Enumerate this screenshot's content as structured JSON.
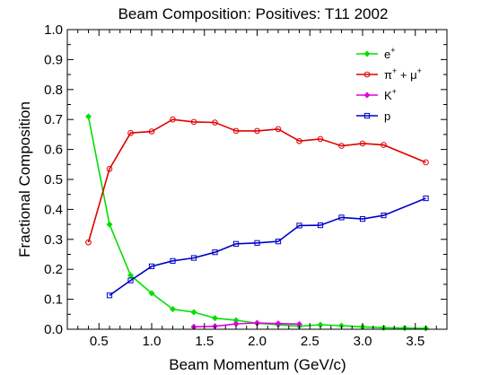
{
  "chart_data": {
    "type": "line",
    "title": "Beam Composition: Positives: T11 2002",
    "xlabel": "Beam Momentum (GeV/c)",
    "ylabel": "Fractional Composition",
    "xlim": [
      0.2,
      3.8
    ],
    "ylim": [
      0.0,
      1.0
    ],
    "xticks": [
      "0.5",
      "1.0",
      "1.5",
      "2.0",
      "2.5",
      "3.0",
      "3.5"
    ],
    "yticks": [
      "0.0",
      "0.1",
      "0.2",
      "0.3",
      "0.4",
      "0.5",
      "0.6",
      "0.7",
      "0.8",
      "0.9",
      "1.0"
    ],
    "grid": false,
    "legend_position": "top-right",
    "series": [
      {
        "name": "e+",
        "legend_base": "e",
        "legend_sup": "+",
        "legend_tail": "",
        "color": "#00e000",
        "marker": "diamond",
        "x": [
          0.4,
          0.6,
          0.8,
          1.0,
          1.2,
          1.4,
          1.6,
          1.8,
          2.0,
          2.2,
          2.4,
          2.6,
          2.8,
          3.0,
          3.2,
          3.4,
          3.6
        ],
        "y": [
          0.71,
          0.35,
          0.18,
          0.12,
          0.067,
          0.057,
          0.037,
          0.03,
          0.02,
          0.015,
          0.01,
          0.015,
          0.012,
          0.008,
          0.005,
          0.004,
          0.003
        ]
      },
      {
        "name": "π+ + μ+",
        "legend_base": "π",
        "legend_sup": "+",
        "legend_tail": " + μ",
        "legend_sup2": "+",
        "color": "#e00000",
        "marker": "circle",
        "x": [
          0.4,
          0.6,
          0.8,
          1.0,
          1.2,
          1.4,
          1.6,
          1.8,
          2.0,
          2.2,
          2.4,
          2.6,
          2.8,
          3.0,
          3.2,
          3.6
        ],
        "y": [
          0.29,
          0.535,
          0.655,
          0.66,
          0.7,
          0.692,
          0.69,
          0.662,
          0.662,
          0.668,
          0.628,
          0.635,
          0.612,
          0.62,
          0.615,
          0.557
        ]
      },
      {
        "name": "K+",
        "legend_base": "K",
        "legend_sup": "+",
        "legend_tail": "",
        "color": "#e000e0",
        "marker": "diamond",
        "x": [
          1.4,
          1.6,
          1.8,
          2.0,
          2.2,
          2.4
        ],
        "y": [
          0.008,
          0.01,
          0.018,
          0.021,
          0.019,
          0.017
        ]
      },
      {
        "name": "p",
        "legend_base": "p",
        "legend_sup": "",
        "legend_tail": "",
        "color": "#0000c8",
        "marker": "square",
        "x": [
          0.6,
          0.8,
          1.0,
          1.2,
          1.4,
          1.6,
          1.8,
          2.0,
          2.2,
          2.4,
          2.6,
          2.8,
          3.0,
          3.2,
          3.6
        ],
        "y": [
          0.113,
          0.163,
          0.21,
          0.228,
          0.238,
          0.257,
          0.285,
          0.288,
          0.293,
          0.346,
          0.347,
          0.373,
          0.368,
          0.38,
          0.437
        ]
      }
    ]
  }
}
